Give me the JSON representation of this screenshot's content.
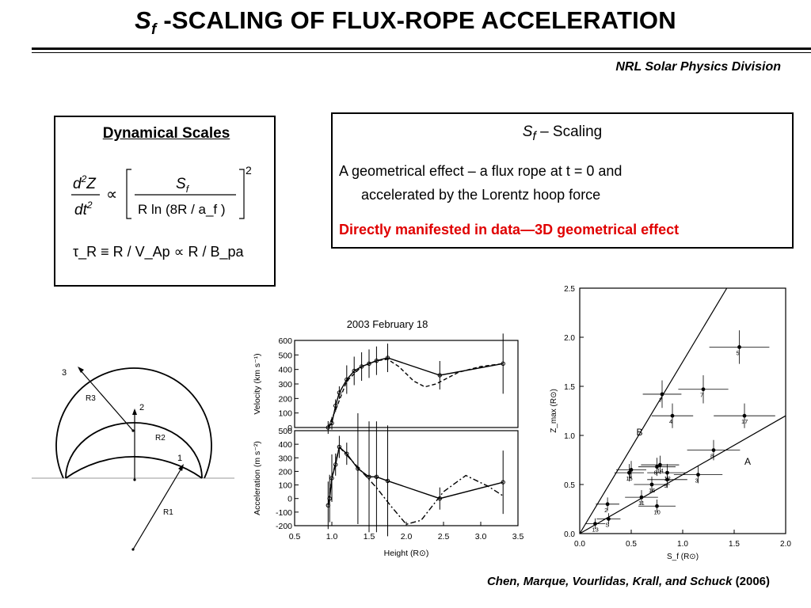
{
  "title": {
    "symbol": "S",
    "subscript": "f",
    "text": " -SCALING OF FLUX-ROPE ACCELERATION"
  },
  "affiliation": "NRL Solar Physics Division",
  "dynamical_scales": {
    "heading": "Dynamical Scales",
    "eq1": {
      "lhs_num": "d²Z",
      "lhs_den": "dt²",
      "prop": "∝",
      "rhs_num": "S_f",
      "rhs_den": "R ln (8R / a_f )",
      "power": "2"
    },
    "eq2": "τ_R ≡ R / V_Ap ∝ R / B_pa"
  },
  "sf_scaling": {
    "heading_symbol": "S",
    "heading_sub": "f",
    "heading_text": " – Scaling",
    "line1": "A geometrical effect – a flux rope at t = 0 and",
    "line2": "accelerated by the Lorentz hoop force",
    "red_line": "Directly manifested in data—3D geometrical effect",
    "red_color": "#e00000"
  },
  "diagram": {
    "labels": [
      "3",
      "2",
      "1"
    ],
    "radii": [
      "R3",
      "R2",
      "R1"
    ]
  },
  "chart_data": [
    {
      "type": "line",
      "title": "2003 February 18",
      "xlabel": "Height (R⊙)",
      "ylabel": "Velocity (km s⁻¹)",
      "xlim": [
        0.5,
        3.5
      ],
      "ylim": [
        0,
        600
      ],
      "x_ticks": [
        "0.5",
        "1.0",
        "1.5",
        "2.0",
        "2.5",
        "3.0",
        "3.5"
      ],
      "y_ticks": [
        "0",
        "100",
        "200",
        "300",
        "400",
        "500",
        "600"
      ],
      "series": [
        {
          "style": "solid",
          "x": [
            0.95,
            1.0,
            1.05,
            1.1,
            1.2,
            1.3,
            1.4,
            1.5,
            1.6,
            1.75,
            2.45,
            3.3
          ],
          "y": [
            0,
            30,
            150,
            240,
            330,
            390,
            420,
            440,
            460,
            480,
            360,
            440
          ]
        },
        {
          "style": "dashed",
          "x": [
            0.95,
            1.05,
            1.2,
            1.4,
            1.6,
            1.75,
            1.9,
            2.1,
            2.25,
            2.4,
            2.7,
            3.0,
            3.3
          ],
          "y": [
            0,
            120,
            320,
            420,
            460,
            470,
            420,
            320,
            280,
            300,
            380,
            420,
            440
          ]
        }
      ]
    },
    {
      "type": "line",
      "xlabel": "Height (R⊙)",
      "ylabel": "Acceleration (m s⁻²)",
      "xlim": [
        0.5,
        3.5
      ],
      "ylim": [
        -200,
        500
      ],
      "x_ticks": [
        "0.5",
        "1.0",
        "1.5",
        "2.0",
        "2.5",
        "3.0",
        "3.5"
      ],
      "y_ticks": [
        "-200",
        "-100",
        "0",
        "100",
        "200",
        "300",
        "400",
        "500"
      ],
      "series": [
        {
          "style": "solid",
          "x": [
            0.95,
            0.97,
            1.0,
            1.05,
            1.1,
            1.2,
            1.35,
            1.5,
            1.6,
            1.75,
            2.45,
            3.3
          ],
          "y": [
            -50,
            0,
            150,
            250,
            380,
            330,
            220,
            160,
            160,
            130,
            0,
            120
          ]
        },
        {
          "style": "dashdot",
          "x": [
            0.95,
            1.0,
            1.1,
            1.2,
            1.4,
            1.6,
            1.8,
            2.0,
            2.2,
            2.5,
            2.8,
            3.1,
            3.3
          ],
          "y": [
            -50,
            150,
            380,
            320,
            200,
            80,
            -60,
            -190,
            -160,
            50,
            170,
            90,
            20
          ]
        }
      ]
    },
    {
      "type": "scatter",
      "xlabel": "S_f (R⊙)",
      "ylabel": "Z_max (R⊙)",
      "xlim": [
        0.0,
        2.0
      ],
      "ylim": [
        0.0,
        2.5
      ],
      "x_ticks": [
        "0.0",
        "0.5",
        "1.0",
        "1.5",
        "2.0"
      ],
      "y_ticks": [
        "0.0",
        "0.5",
        "1.0",
        "1.5",
        "2.0",
        "2.5"
      ],
      "lines": [
        {
          "label": "B",
          "slope": 1.75
        },
        {
          "label": "A",
          "slope": 0.6
        }
      ],
      "points": [
        {
          "label": "1",
          "x": 0.5,
          "y": 0.65
        },
        {
          "label": "2",
          "x": 0.27,
          "y": 0.3
        },
        {
          "label": "3",
          "x": 1.15,
          "y": 0.6
        },
        {
          "label": "4",
          "x": 0.9,
          "y": 1.2
        },
        {
          "label": "5",
          "x": 1.55,
          "y": 1.9
        },
        {
          "label": "6",
          "x": 0.75,
          "y": 0.68
        },
        {
          "label": "7",
          "x": 0.8,
          "y": 1.42
        },
        {
          "label": "7",
          "x": 1.2,
          "y": 1.47
        },
        {
          "label": "8",
          "x": 1.3,
          "y": 0.85
        },
        {
          "label": "9",
          "x": 0.85,
          "y": 0.55
        },
        {
          "label": "10",
          "x": 0.75,
          "y": 0.28
        },
        {
          "label": "11",
          "x": 0.6,
          "y": 0.37
        },
        {
          "label": "12",
          "x": 0.85,
          "y": 0.62
        },
        {
          "label": "13",
          "x": 0.15,
          "y": 0.1
        },
        {
          "label": "14",
          "x": 0.78,
          "y": 0.7
        },
        {
          "label": "15",
          "x": 0.48,
          "y": 0.62
        },
        {
          "label": "16",
          "x": 0.7,
          "y": 0.5
        },
        {
          "label": "17",
          "x": 1.6,
          "y": 1.2
        },
        {
          "label": "S",
          "x": 0.28,
          "y": 0.15
        }
      ]
    }
  ],
  "citation": {
    "authors": "Chen, Marque, Vourlidas, Krall, and Schuck",
    "year": "(2006)"
  }
}
